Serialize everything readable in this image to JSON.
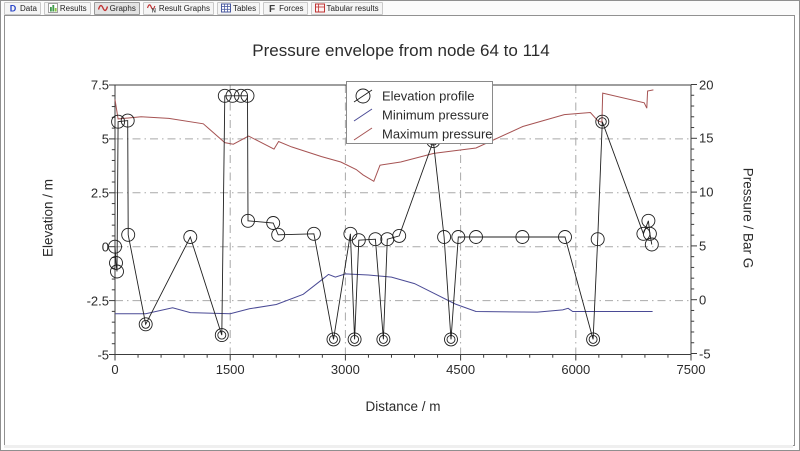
{
  "toolbar": {
    "buttons": [
      {
        "label": "Data",
        "icon": "data-icon",
        "active": false
      },
      {
        "label": "Results",
        "icon": "results-icon",
        "active": false
      },
      {
        "label": "Graphs",
        "icon": "graphs-icon",
        "active": true
      },
      {
        "label": "Result Graphs",
        "icon": "result-graphs-icon",
        "active": false
      },
      {
        "label": "Tables",
        "icon": "tables-icon",
        "active": false
      },
      {
        "label": "Forces",
        "icon": "forces-icon",
        "active": false
      },
      {
        "label": "Tabular results",
        "icon": "tabular-results-icon",
        "active": false
      }
    ]
  },
  "colors": {
    "elevation": "#1f1f1f",
    "min_pressure": "#4a4a95",
    "max_pressure": "#a65353",
    "grid": "#a9a9a9",
    "frame": "#3c3c3c",
    "legend_border": "#8a8a8a"
  },
  "chart_data": {
    "type": "line",
    "title": "Pressure envelope from node 64 to 114",
    "xlabel": "Distance / m",
    "ylabel_left": "Elevation / m",
    "ylabel_right": "Pressure / Bar G",
    "xlim": [
      0,
      7500
    ],
    "ylim_left": [
      -5,
      7.5
    ],
    "ylim_right": [
      -5,
      20
    ],
    "x_ticks": [
      0,
      1500,
      3000,
      4500,
      6000,
      7500
    ],
    "x_tick_labels": [
      "0",
      "1500",
      "3000",
      "4500",
      "6000",
      "7500"
    ],
    "x_minor_step": 300,
    "y_left_ticks": [
      7.5,
      5,
      2.5,
      0,
      -2.5,
      -5
    ],
    "y_left_tick_labels": [
      "7.5",
      "5",
      "2.5",
      "0",
      "-2.5",
      "-5"
    ],
    "y_left_minor_step": 0.5,
    "y_right_ticks": [
      20,
      15,
      10,
      5,
      0,
      -5
    ],
    "y_right_tick_labels": [
      "20",
      "15",
      "10",
      "5",
      "0",
      "-5"
    ],
    "y_right_minor_step": 1,
    "grid": "dash-dot",
    "legend": {
      "position": "top-center",
      "entries": [
        {
          "label": "Elevation profile",
          "symbol": "circle-slash",
          "color": "#1f1f1f"
        },
        {
          "label": "Minimum pressure",
          "symbol": "line",
          "color": "#4a4a95"
        },
        {
          "label": "Maximum pressure",
          "symbol": "line",
          "color": "#a65353"
        }
      ]
    },
    "series": [
      {
        "name": "Elevation profile",
        "axis": "left",
        "marker": "circle",
        "points": [
          [
            0,
            0,
            0
          ],
          [
            13,
            -0.75,
            0
          ],
          [
            26,
            -1.15,
            0
          ],
          [
            40,
            5.8,
            0
          ],
          [
            165,
            5.85,
            0
          ],
          [
            172,
            0.55,
            0
          ],
          [
            400,
            -3.6,
            1
          ],
          [
            980,
            0.45,
            0
          ],
          [
            1390,
            -4.1,
            1
          ],
          [
            1430,
            7.0,
            0
          ],
          [
            1530,
            7.0,
            0
          ],
          [
            1640,
            7.0,
            0
          ],
          [
            1725,
            7.0,
            0
          ],
          [
            1732,
            1.2,
            0
          ],
          [
            2060,
            1.1,
            0
          ],
          [
            2125,
            0.55,
            0
          ],
          [
            2590,
            0.6,
            0
          ],
          [
            2845,
            -4.3,
            1
          ],
          [
            3065,
            0.6,
            0
          ],
          [
            3120,
            -4.3,
            1
          ],
          [
            3175,
            0.3,
            0
          ],
          [
            3390,
            0.35,
            0
          ],
          [
            3495,
            -4.3,
            1
          ],
          [
            3545,
            0.35,
            0
          ],
          [
            3700,
            0.5,
            0
          ],
          [
            4145,
            4.9,
            1
          ],
          [
            4285,
            0.45,
            0
          ],
          [
            4375,
            -4.3,
            1
          ],
          [
            4470,
            0.45,
            0
          ],
          [
            4700,
            0.45,
            0
          ],
          [
            5305,
            0.45,
            0
          ],
          [
            5860,
            0.45,
            0
          ],
          [
            6225,
            -4.3,
            1
          ],
          [
            6285,
            0.35,
            0
          ],
          [
            6345,
            5.8,
            1
          ],
          [
            6880,
            0.6,
            0
          ],
          [
            6945,
            1.2,
            0
          ],
          [
            6965,
            0.6,
            0
          ],
          [
            6990,
            0.1,
            0
          ]
        ]
      },
      {
        "name": "Minimum pressure",
        "axis": "right",
        "marker": "none",
        "points": [
          [
            0,
            -1.3
          ],
          [
            400,
            -1.3
          ],
          [
            750,
            -0.75
          ],
          [
            980,
            -1.2
          ],
          [
            1500,
            -1.3
          ],
          [
            1750,
            -0.85
          ],
          [
            2100,
            -0.45
          ],
          [
            2450,
            0.5
          ],
          [
            2700,
            1.9
          ],
          [
            2780,
            2.35
          ],
          [
            2870,
            2.1
          ],
          [
            3000,
            2.4
          ],
          [
            3300,
            2.3
          ],
          [
            3600,
            2.1
          ],
          [
            3900,
            1.5
          ],
          [
            4150,
            0.6
          ],
          [
            4430,
            -0.4
          ],
          [
            4700,
            -1.1
          ],
          [
            5500,
            -1.15
          ],
          [
            5830,
            -0.95
          ],
          [
            5900,
            -0.8
          ],
          [
            5960,
            -1.1
          ],
          [
            6500,
            -1.1
          ],
          [
            7000,
            -1.1
          ]
        ]
      },
      {
        "name": "Maximum pressure",
        "axis": "right",
        "marker": "none",
        "points": [
          [
            0,
            18.6
          ],
          [
            40,
            16.8
          ],
          [
            340,
            17.0
          ],
          [
            700,
            16.85
          ],
          [
            1150,
            16.35
          ],
          [
            1430,
            14.6
          ],
          [
            1540,
            14.45
          ],
          [
            1740,
            15.2
          ],
          [
            2070,
            14.0
          ],
          [
            2130,
            14.7
          ],
          [
            2300,
            14.2
          ],
          [
            2690,
            13.3
          ],
          [
            2940,
            12.8
          ],
          [
            3140,
            12.1
          ],
          [
            3230,
            11.6
          ],
          [
            3370,
            11.0
          ],
          [
            3450,
            12.5
          ],
          [
            3720,
            12.8
          ],
          [
            4150,
            13.6
          ],
          [
            4700,
            14.1
          ],
          [
            5310,
            16.1
          ],
          [
            5850,
            17.2
          ],
          [
            6190,
            17.4
          ],
          [
            6290,
            16.6
          ],
          [
            6340,
            16.5
          ],
          [
            6350,
            19.2
          ],
          [
            6890,
            18.3
          ],
          [
            6925,
            17.8
          ],
          [
            6935,
            19.4
          ],
          [
            7010,
            19.5
          ]
        ]
      }
    ]
  }
}
